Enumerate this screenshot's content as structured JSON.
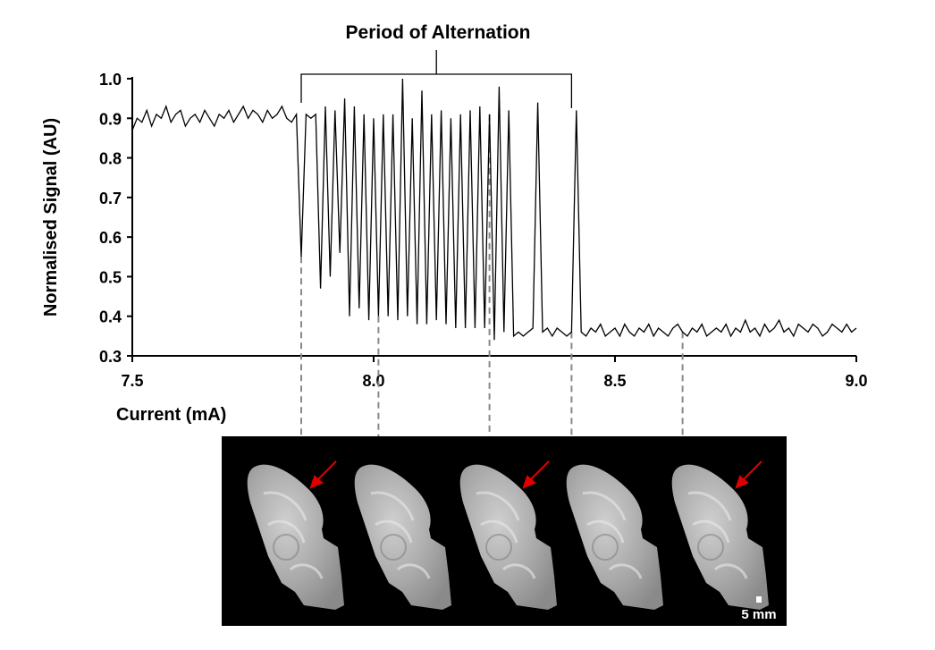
{
  "chart_data": {
    "type": "line",
    "title": "Period of Alternation",
    "x_label": "Current (mA)",
    "y_label": "Normalised Signal (AU)",
    "xlim": [
      7.5,
      9.0
    ],
    "ylim": [
      0.3,
      1.0
    ],
    "xticks": [
      7.5,
      {
        "value": 8,
        "label": "8.0"
      },
      8.5,
      {
        "value": 9,
        "label": "9.0"
      }
    ],
    "yticks": [
      0.3,
      0.4,
      0.5,
      0.6,
      0.7,
      0.8,
      0.9,
      {
        "value": 1,
        "label": "1.0"
      }
    ],
    "color": "#000000",
    "bracket": [
      7.85,
      8.41
    ],
    "markers": [
      7.85,
      8.01,
      8.24,
      8.41,
      8.64
    ],
    "scale_bar": "5 mm",
    "x": [
      7.5,
      7.51,
      7.52,
      7.53,
      7.54,
      7.55,
      7.56,
      7.57,
      7.58,
      7.59,
      7.6,
      7.61,
      7.62,
      7.63,
      7.64,
      7.65,
      7.66,
      7.67,
      7.68,
      7.69,
      7.7,
      7.71,
      7.72,
      7.73,
      7.74,
      7.75,
      7.76,
      7.77,
      7.78,
      7.79,
      7.8,
      7.81,
      7.82,
      7.83,
      7.84,
      7.85,
      7.86,
      7.87,
      7.88,
      7.89,
      7.9,
      7.91,
      7.92,
      7.93,
      7.94,
      7.95,
      7.96,
      7.97,
      7.98,
      7.99,
      8.0,
      8.01,
      8.02,
      8.03,
      8.04,
      8.05,
      8.06,
      8.07,
      8.08,
      8.09,
      8.1,
      8.11,
      8.12,
      8.13,
      8.14,
      8.15,
      8.16,
      8.17,
      8.18,
      8.19,
      8.2,
      8.21,
      8.22,
      8.23,
      8.24,
      8.25,
      8.26,
      8.27,
      8.28,
      8.29,
      8.3,
      8.31,
      8.32,
      8.33,
      8.34,
      8.35,
      8.36,
      8.37,
      8.38,
      8.39,
      8.4,
      8.41,
      8.42,
      8.43,
      8.44,
      8.45,
      8.46,
      8.47,
      8.48,
      8.49,
      8.5,
      8.51,
      8.52,
      8.53,
      8.54,
      8.55,
      8.56,
      8.57,
      8.58,
      8.59,
      8.6,
      8.61,
      8.62,
      8.63,
      8.64,
      8.65,
      8.66,
      8.67,
      8.68,
      8.69,
      8.7,
      8.71,
      8.72,
      8.73,
      8.74,
      8.75,
      8.76,
      8.77,
      8.78,
      8.79,
      8.8,
      8.81,
      8.82,
      8.83,
      8.84,
      8.85,
      8.86,
      8.87,
      8.88,
      8.89,
      8.9,
      8.91,
      8.92,
      8.93,
      8.94,
      8.95,
      8.96,
      8.97,
      8.98,
      8.99,
      9.0
    ],
    "values": [
      0.87,
      0.9,
      0.89,
      0.92,
      0.88,
      0.91,
      0.9,
      0.93,
      0.89,
      0.91,
      0.92,
      0.88,
      0.9,
      0.91,
      0.89,
      0.92,
      0.9,
      0.88,
      0.91,
      0.9,
      0.92,
      0.89,
      0.91,
      0.93,
      0.9,
      0.92,
      0.91,
      0.89,
      0.92,
      0.9,
      0.91,
      0.93,
      0.9,
      0.89,
      0.91,
      0.55,
      0.91,
      0.9,
      0.91,
      0.47,
      0.93,
      0.5,
      0.92,
      0.56,
      0.95,
      0.4,
      0.93,
      0.42,
      0.91,
      0.39,
      0.9,
      0.4,
      0.91,
      0.4,
      0.91,
      0.39,
      1.0,
      0.4,
      0.9,
      0.38,
      0.97,
      0.38,
      0.91,
      0.39,
      0.92,
      0.38,
      0.9,
      0.37,
      0.91,
      0.37,
      0.92,
      0.37,
      0.93,
      0.37,
      0.91,
      0.34,
      0.98,
      0.36,
      0.92,
      0.35,
      0.36,
      0.35,
      0.36,
      0.37,
      0.94,
      0.36,
      0.37,
      0.35,
      0.37,
      0.36,
      0.35,
      0.36,
      0.92,
      0.36,
      0.35,
      0.37,
      0.36,
      0.38,
      0.35,
      0.36,
      0.37,
      0.35,
      0.38,
      0.36,
      0.35,
      0.37,
      0.36,
      0.38,
      0.35,
      0.37,
      0.36,
      0.35,
      0.37,
      0.38,
      0.36,
      0.35,
      0.37,
      0.36,
      0.38,
      0.35,
      0.36,
      0.37,
      0.36,
      0.38,
      0.35,
      0.37,
      0.36,
      0.39,
      0.36,
      0.37,
      0.35,
      0.38,
      0.36,
      0.37,
      0.39,
      0.36,
      0.37,
      0.35,
      0.38,
      0.37,
      0.36,
      0.38,
      0.37,
      0.35,
      0.36,
      0.38,
      0.37,
      0.36,
      0.38,
      0.36,
      0.37
    ]
  }
}
